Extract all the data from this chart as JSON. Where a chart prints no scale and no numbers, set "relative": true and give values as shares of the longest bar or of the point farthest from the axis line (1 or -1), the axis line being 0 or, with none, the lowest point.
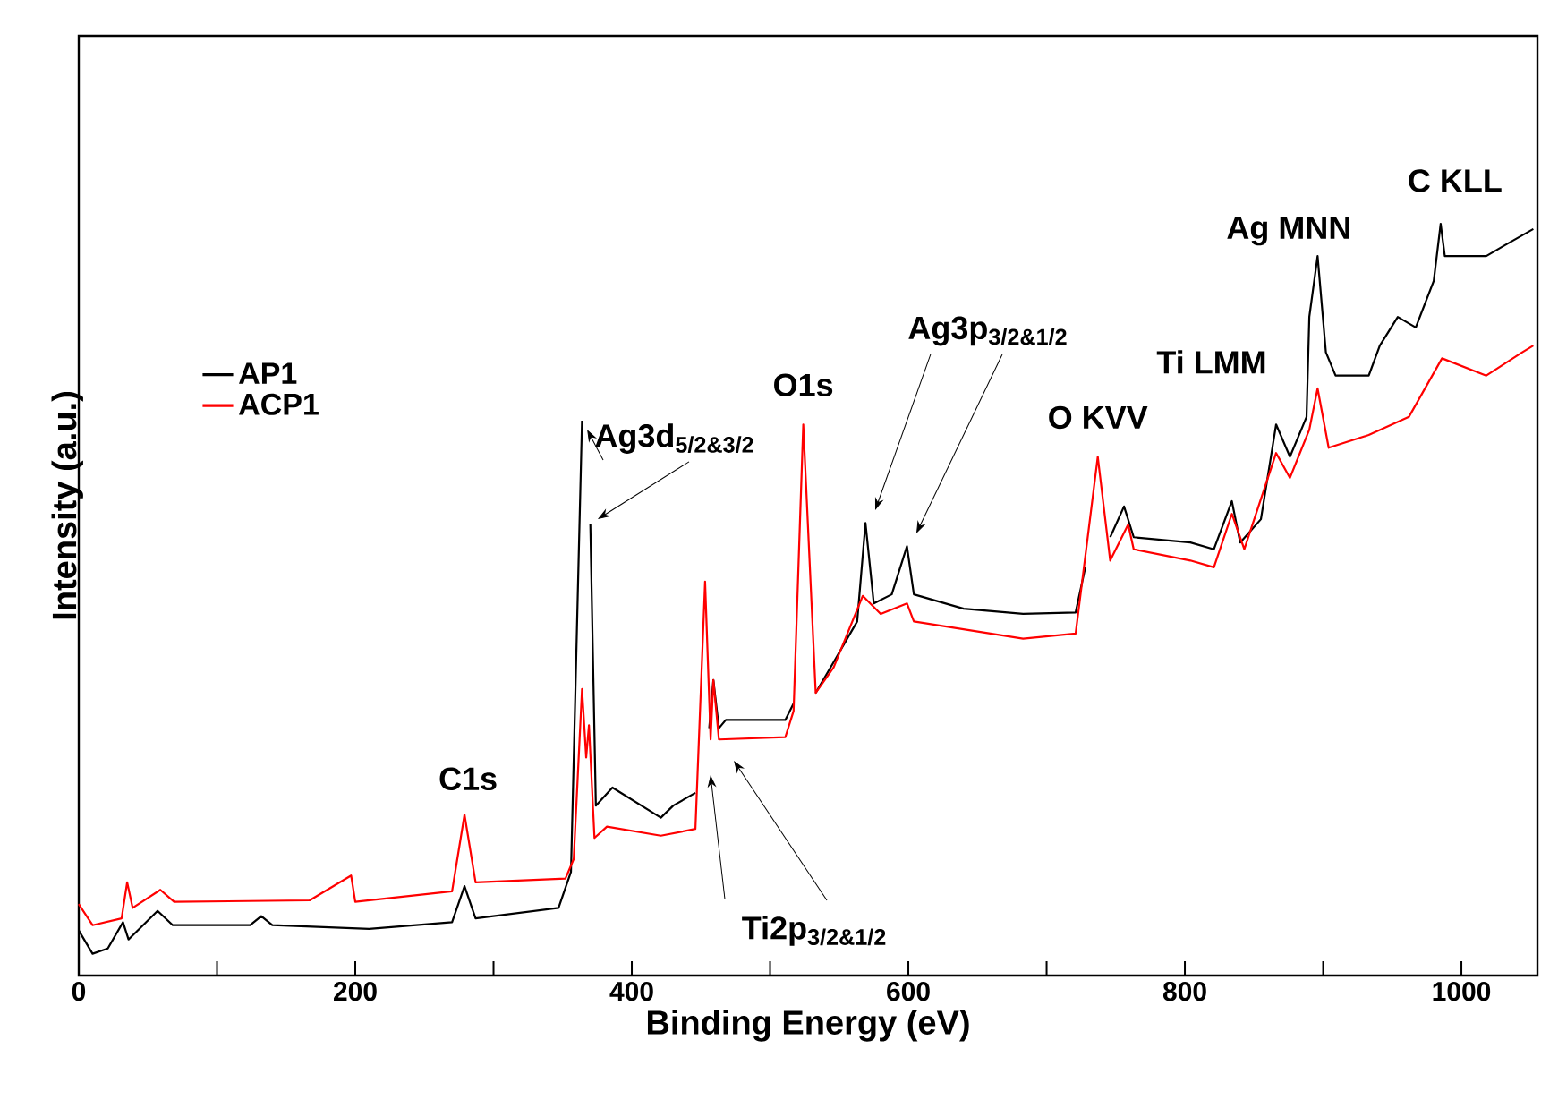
{
  "chart_data": {
    "type": "line",
    "relative": true,
    "xlabel": "Binding Energy (eV)",
    "ylabel": "Intensity (a.u.)",
    "xlim": [
      0,
      1055
    ],
    "xticks": [
      0,
      {
        "value": 100,
        "label": null
      },
      200,
      {
        "value": 300,
        "label": null
      },
      400,
      {
        "value": 500,
        "label": null
      },
      600,
      {
        "value": 700,
        "label": null
      },
      800,
      {
        "value": 900,
        "label": null
      },
      1000
    ],
    "grid": false,
    "legend": "top left",
    "marker": "none",
    "line_style": "solid",
    "series": [
      {
        "name": "AP1",
        "color": "#000000",
        "x": [
          0,
          10,
          21,
          32,
          36,
          57,
          68,
          124,
          132,
          140,
          210,
          270,
          279,
          287,
          347,
          356,
          364,
          367,
          370,
          374,
          386,
          421,
          430,
          446,
          453,
          456,
          459,
          463,
          468,
          511,
          517,
          524,
          533,
          546,
          563,
          569,
          575,
          588,
          599,
          604,
          640,
          683,
          721,
          728,
          737,
          746,
          756,
          763,
          804,
          821,
          834,
          840,
          855,
          866,
          876,
          888,
          890,
          896,
          902,
          909,
          933,
          941,
          954,
          967,
          980,
          985,
          988,
          1018,
          1031,
          1052
        ],
        "values": [
          0.06,
          0.029,
          0.036,
          0.071,
          0.048,
          0.086,
          0.067,
          0.067,
          0.079,
          0.067,
          0.062,
          0.071,
          0.119,
          0.076,
          0.09,
          0.138,
          0.738,
          null,
          0.6,
          0.226,
          0.25,
          0.21,
          0.226,
          0.243,
          null,
          0.329,
          0.393,
          0.329,
          0.34,
          0.34,
          0.362,
          null,
          0.376,
          0.417,
          0.471,
          0.602,
          0.495,
          0.507,
          0.571,
          0.507,
          0.488,
          0.481,
          0.483,
          0.543,
          null,
          0.583,
          0.624,
          0.583,
          0.576,
          0.567,
          0.631,
          0.576,
          0.607,
          0.733,
          0.69,
          0.743,
          0.876,
          0.957,
          0.829,
          0.798,
          0.798,
          0.838,
          0.876,
          0.862,
          0.924,
          1,
          0.957,
          0.957,
          0.971,
          0.993
        ]
      },
      {
        "name": "ACP1",
        "color": "#ff0000",
        "x": [
          0,
          10,
          31,
          35,
          39,
          59,
          69,
          167,
          197,
          200,
          270,
          279,
          287,
          352,
          358,
          364,
          367,
          369,
          373,
          382,
          421,
          446,
          453,
          457,
          459,
          463,
          511,
          517,
          524,
          533,
          546,
          567,
          580,
          599,
          604,
          683,
          721,
          737,
          746,
          759,
          763,
          804,
          821,
          834,
          843,
          866,
          876,
          890,
          896,
          904,
          933,
          962,
          986,
          1018,
          1044,
          1052
        ],
        "values": [
          0.095,
          0.067,
          0.076,
          0.124,
          0.09,
          0.114,
          0.098,
          0.1,
          0.133,
          0.098,
          0.112,
          0.214,
          0.124,
          0.129,
          0.155,
          0.381,
          0.29,
          0.333,
          0.183,
          0.198,
          0.186,
          0.195,
          0.524,
          0.314,
          0.393,
          0.314,
          0.317,
          0.352,
          0.733,
          0.376,
          0.41,
          0.505,
          0.481,
          0.495,
          0.471,
          0.448,
          0.455,
          0.69,
          0.552,
          0.6,
          0.567,
          0.552,
          0.543,
          0.614,
          0.567,
          0.695,
          0.662,
          0.726,
          0.781,
          0.702,
          0.719,
          0.743,
          0.821,
          0.798,
          0.829,
          0.838
        ]
      }
    ],
    "annotations": [
      {
        "text": "C1s",
        "x": 279,
        "y": 0.214
      },
      "Ag3d$_{5/2&3/2}$",
      "Ti2p$_{3/2&1/2}$",
      {
        "text": "O1s",
        "x": 524,
        "y": 0.733
      },
      "Ag3p$_{3/2&1/2}$",
      {
        "text": "O KVV",
        "x": 737,
        "y": 0.69
      },
      {
        "text": "Ti LMM",
        "x": 866,
        "y": 0.733
      },
      {
        "text": "Ag MNN",
        "x": 896,
        "y": 0.957
      },
      {
        "text": "C KLL",
        "x": 985,
        "y": 1
      }
    ]
  }
}
